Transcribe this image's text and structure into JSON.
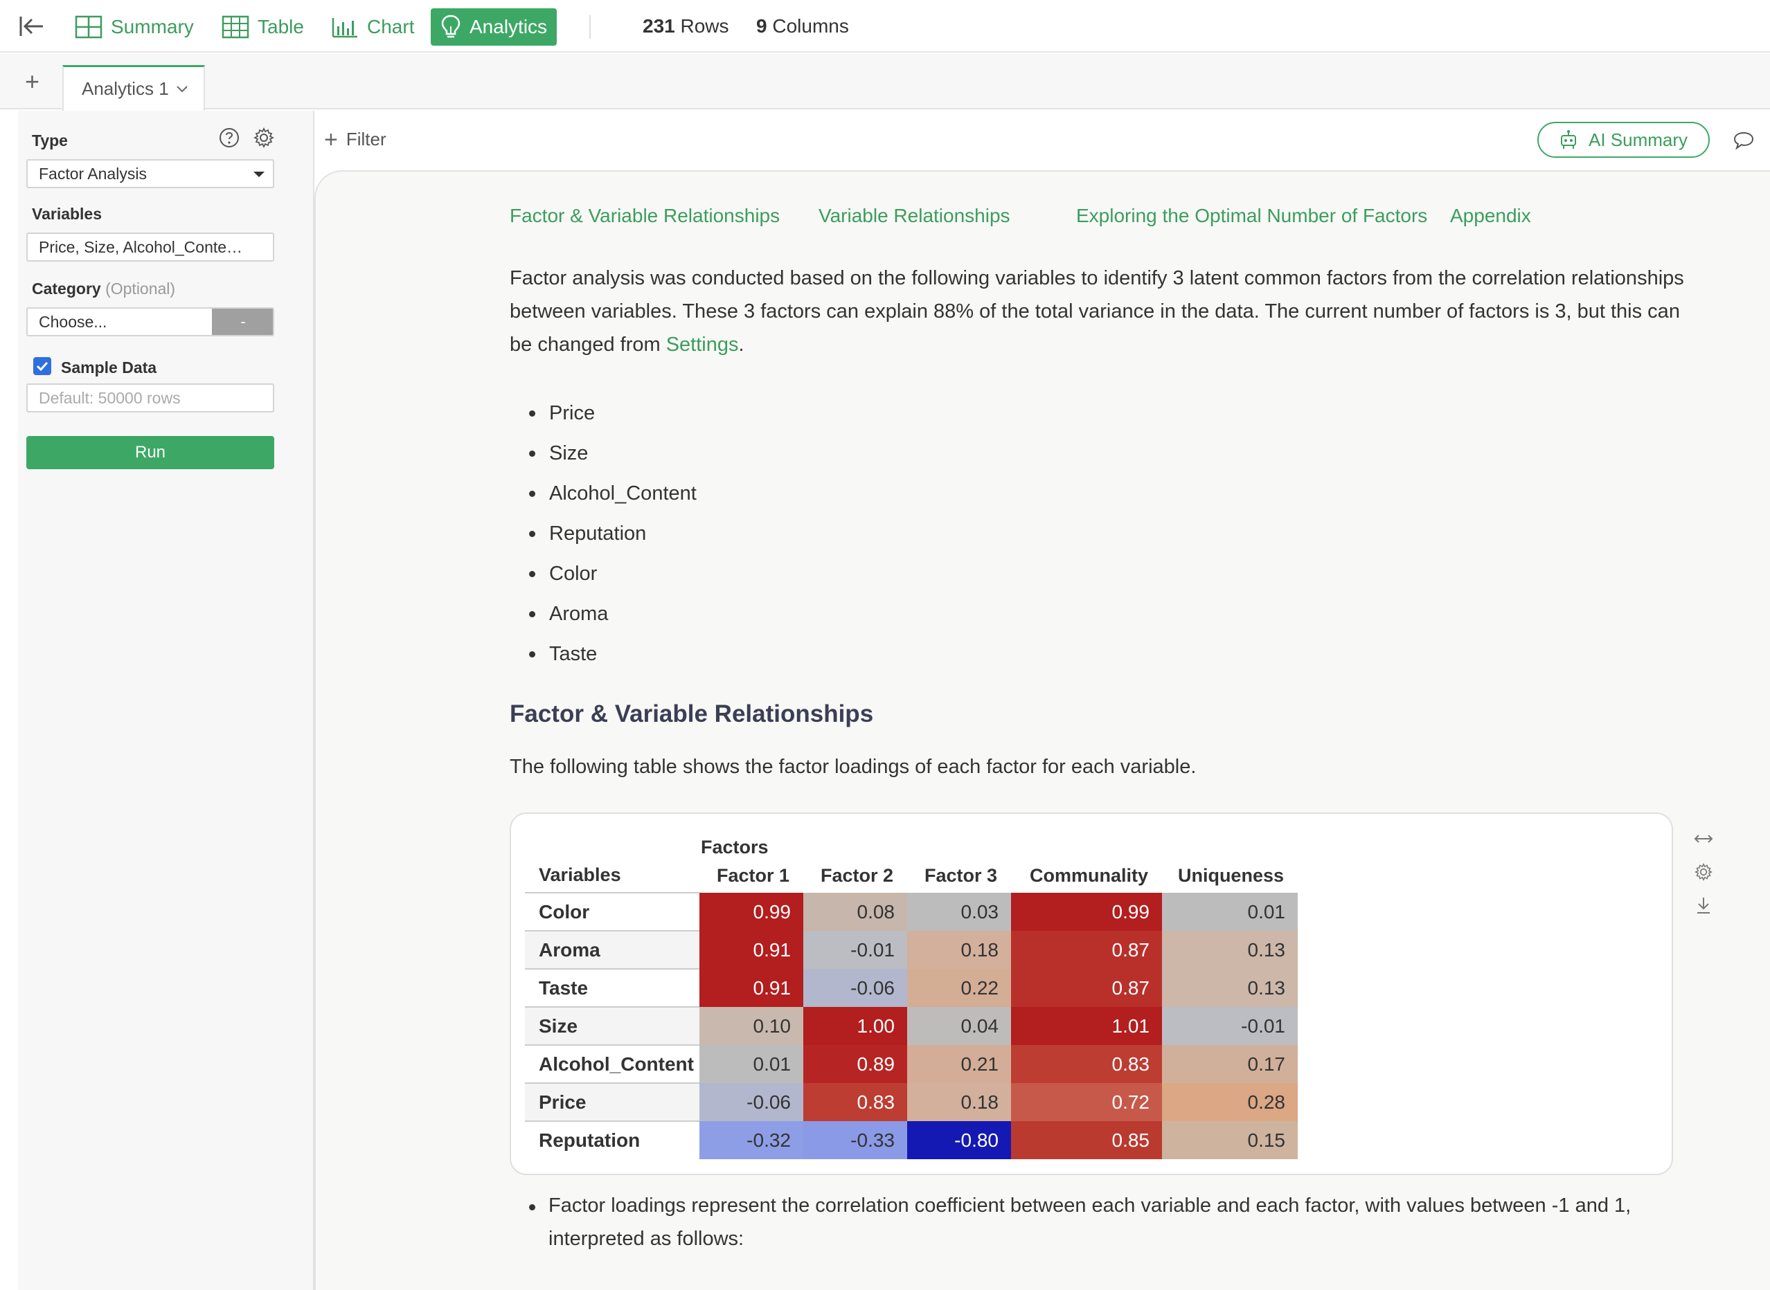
{
  "topbar": {
    "tabs": [
      {
        "label": "Summary",
        "icon": "summary-grid-icon"
      },
      {
        "label": "Table",
        "icon": "table-grid-icon"
      },
      {
        "label": "Chart",
        "icon": "bar-chart-icon"
      },
      {
        "label": "Analytics",
        "icon": "lightbulb-icon",
        "active": true
      }
    ],
    "rows_count": "231",
    "rows_label": "Rows",
    "columns_count": "9",
    "columns_label": "Columns"
  },
  "tabstrip": {
    "add_symbol": "+",
    "active_tab": "Analytics 1"
  },
  "left_panel": {
    "type_label": "Type",
    "type_value": "Factor Analysis",
    "variables_label": "Variables",
    "variables_value": "Price, Size, Alcohol_Conte…",
    "category_label": "Category",
    "category_optional": "(Optional)",
    "category_placeholder": "Choose...",
    "category_button": "-",
    "sample_label": "Sample Data",
    "sample_checked": true,
    "sample_placeholder": "Default: 50000 rows",
    "run_label": "Run"
  },
  "filter_bar": {
    "filter_label": "Filter",
    "ai_summary_label": "AI Summary"
  },
  "content": {
    "toc": [
      "Factor & Variable Relationships",
      "Variable Relationships",
      "Exploring the Optimal Number of Factors",
      "Appendix"
    ],
    "intro_text": "Factor analysis was conducted based on the following variables to identify 3 latent common factors from the correlation relationships between variables. These 3 factors can explain 88% of the total variance in the data. The current number of factors is 3, but this can be changed from ",
    "intro_link": "Settings",
    "intro_end": ".",
    "variables": [
      "Price",
      "Size",
      "Alcohol_Content",
      "Reputation",
      "Color",
      "Aroma",
      "Taste"
    ],
    "section_title": "Factor & Variable Relationships",
    "section_desc": "The following table shows the factor loadings of each factor for each variable.",
    "bottom_bullet": "Factor loadings represent the correlation coefficient between each variable and each factor, with values between -1 and 1, interpreted as follows:"
  },
  "loadings_table": {
    "group_header": "Factors",
    "columns": [
      "Variables",
      "Factor 1",
      "Factor 2",
      "Factor 3",
      "Communality",
      "Uniqueness"
    ],
    "rows": [
      {
        "name": "Color",
        "values": [
          "0.99",
          "0.08",
          "0.03",
          "0.99",
          "0.01"
        ],
        "colors": [
          "#b31e1e",
          "#c7b6ab",
          "#bcbcbc",
          "#b31e1e",
          "#bcbcbc"
        ],
        "text": [
          "#fff",
          "#333",
          "#333",
          "#fff",
          "#333"
        ]
      },
      {
        "name": "Aroma",
        "values": [
          "0.91",
          "-0.01",
          "0.18",
          "0.87",
          "0.13"
        ],
        "colors": [
          "#b31e1e",
          "#bcbdc2",
          "#d2b09c",
          "#b9302b",
          "#ccb7a9"
        ],
        "text": [
          "#fff",
          "#333",
          "#333",
          "#fff",
          "#333"
        ]
      },
      {
        "name": "Taste",
        "values": [
          "0.91",
          "-0.06",
          "0.22",
          "0.87",
          "0.13"
        ],
        "colors": [
          "#b31e1e",
          "#b2b7cd",
          "#d4ad95",
          "#b9302b",
          "#ccb7a9"
        ],
        "text": [
          "#fff",
          "#333",
          "#333",
          "#fff",
          "#333"
        ]
      },
      {
        "name": "Size",
        "values": [
          "0.10",
          "1.00",
          "0.04",
          "1.01",
          "-0.01"
        ],
        "colors": [
          "#c9b8ad",
          "#b31e1e",
          "#bdbcbb",
          "#b31e1e",
          "#bcbdc2"
        ],
        "text": [
          "#333",
          "#fff",
          "#333",
          "#fff",
          "#333"
        ]
      },
      {
        "name": "Alcohol_Content",
        "values": [
          "0.01",
          "0.89",
          "0.21",
          "0.83",
          "0.17"
        ],
        "colors": [
          "#bcbcbc",
          "#b62523",
          "#d3ad97",
          "#bd3d33",
          "#d1b09b"
        ],
        "text": [
          "#333",
          "#fff",
          "#333",
          "#fff",
          "#333"
        ]
      },
      {
        "name": "Price",
        "values": [
          "-0.06",
          "0.83",
          "0.18",
          "0.72",
          "0.28"
        ],
        "colors": [
          "#b2b7cd",
          "#bd3d33",
          "#d2b09c",
          "#c7594a",
          "#dba785"
        ],
        "text": [
          "#333",
          "#fff",
          "#333",
          "#fff",
          "#333"
        ]
      },
      {
        "name": "Reputation",
        "values": [
          "-0.32",
          "-0.33",
          "-0.80",
          "0.85",
          "0.15"
        ],
        "colors": [
          "#8e9ee6",
          "#8b9ae6",
          "#1419b3",
          "#ba3a30",
          "#ceb39f"
        ],
        "text": [
          "#333",
          "#333",
          "#fff",
          "#fff",
          "#333"
        ]
      }
    ]
  },
  "accent_color": "#3da865"
}
